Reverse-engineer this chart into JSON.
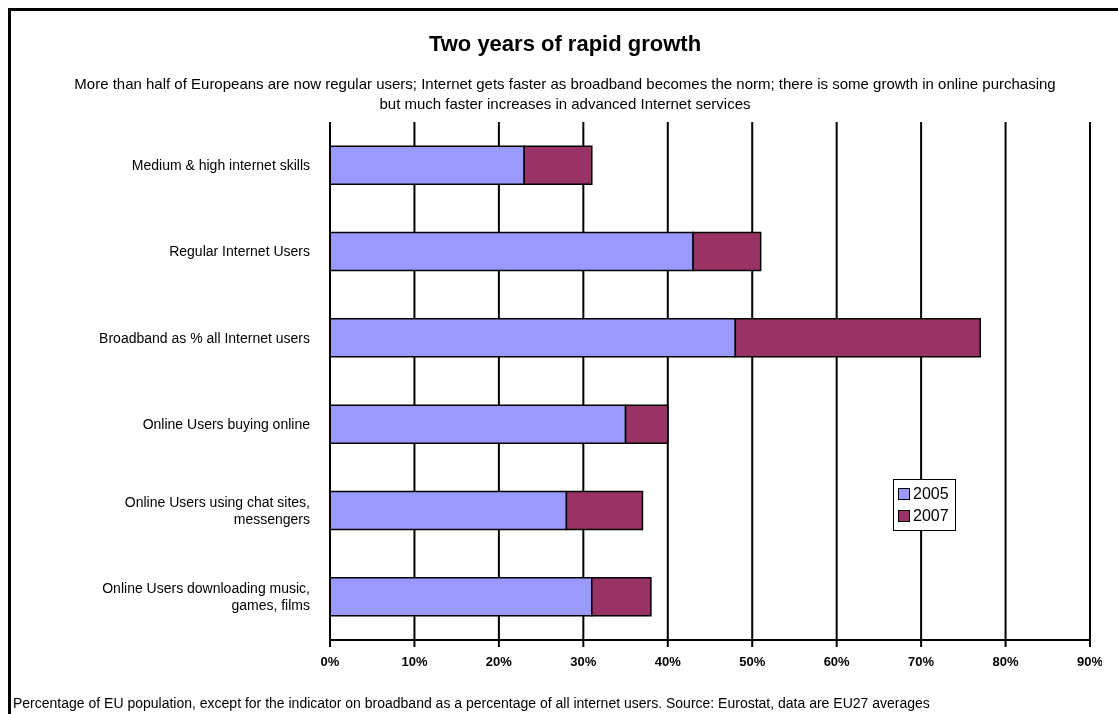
{
  "chart_data": {
    "type": "bar",
    "orientation": "horizontal",
    "stacked": true,
    "title": "Two years of rapid growth",
    "subtitle": "More than half of Europeans are now regular users; Internet gets faster as broadband becomes the norm; there is some growth in online purchasing but much faster increases in advanced Internet services",
    "categories": [
      "Medium & high internet skills",
      "Regular Internet Users",
      "Broadband as % all Internet users",
      "Online Users buying online",
      "Online Users using chat sites, messengers",
      "Online Users downloading music, games, films"
    ],
    "series": [
      {
        "name": "2005",
        "color": "#9999ff",
        "values": [
          23,
          43,
          48,
          35,
          28,
          31
        ]
      },
      {
        "name": "2007",
        "color": "#993366",
        "values": [
          8,
          8,
          29,
          5,
          9,
          7
        ]
      }
    ],
    "xlim": [
      0,
      90
    ],
    "xticks": [
      {
        "value": 0,
        "label": "0%"
      },
      {
        "value": 10,
        "label": "10%"
      },
      {
        "value": 20,
        "label": "20%"
      },
      {
        "value": 30,
        "label": "30%"
      },
      {
        "value": 40,
        "label": "40%"
      },
      {
        "value": 50,
        "label": "50%"
      },
      {
        "value": 60,
        "label": "60%"
      },
      {
        "value": 70,
        "label": "70%"
      },
      {
        "value": 80,
        "label": "80%"
      },
      {
        "value": 90,
        "label": "90%"
      }
    ],
    "grid": "x",
    "legend": "right",
    "annotations": [
      "Percentage of EU population, except for the indicator on broadband as a percentage of all internet users. Source: Eurostat, data are EU27 averages"
    ]
  }
}
